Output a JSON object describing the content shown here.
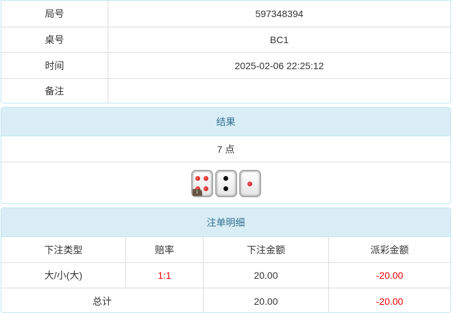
{
  "info": {
    "rows": [
      {
        "label": "局号",
        "value": "597348394"
      },
      {
        "label": "桌号",
        "value": "BC1"
      },
      {
        "label": "时间",
        "value": "2025-02-06 22:25:12"
      },
      {
        "label": "备注",
        "value": ""
      }
    ]
  },
  "result": {
    "title": "结果",
    "points": "7 点",
    "dice": [
      4,
      2,
      1
    ],
    "info_badge": "i"
  },
  "bets": {
    "title": "注单明细",
    "columns": [
      "下注类型",
      "赔率",
      "下注金额",
      "派彩金额"
    ],
    "rows": [
      {
        "type": "大/小(大)",
        "odds": "1:1",
        "amount": "20.00",
        "payout": "-20.00"
      }
    ],
    "total": {
      "label": "总计",
      "amount": "20.00",
      "payout": "-20.00"
    }
  },
  "colors": {
    "header_bg": "#d9edf7",
    "header_text": "#31708f",
    "negative": "#e00000"
  }
}
